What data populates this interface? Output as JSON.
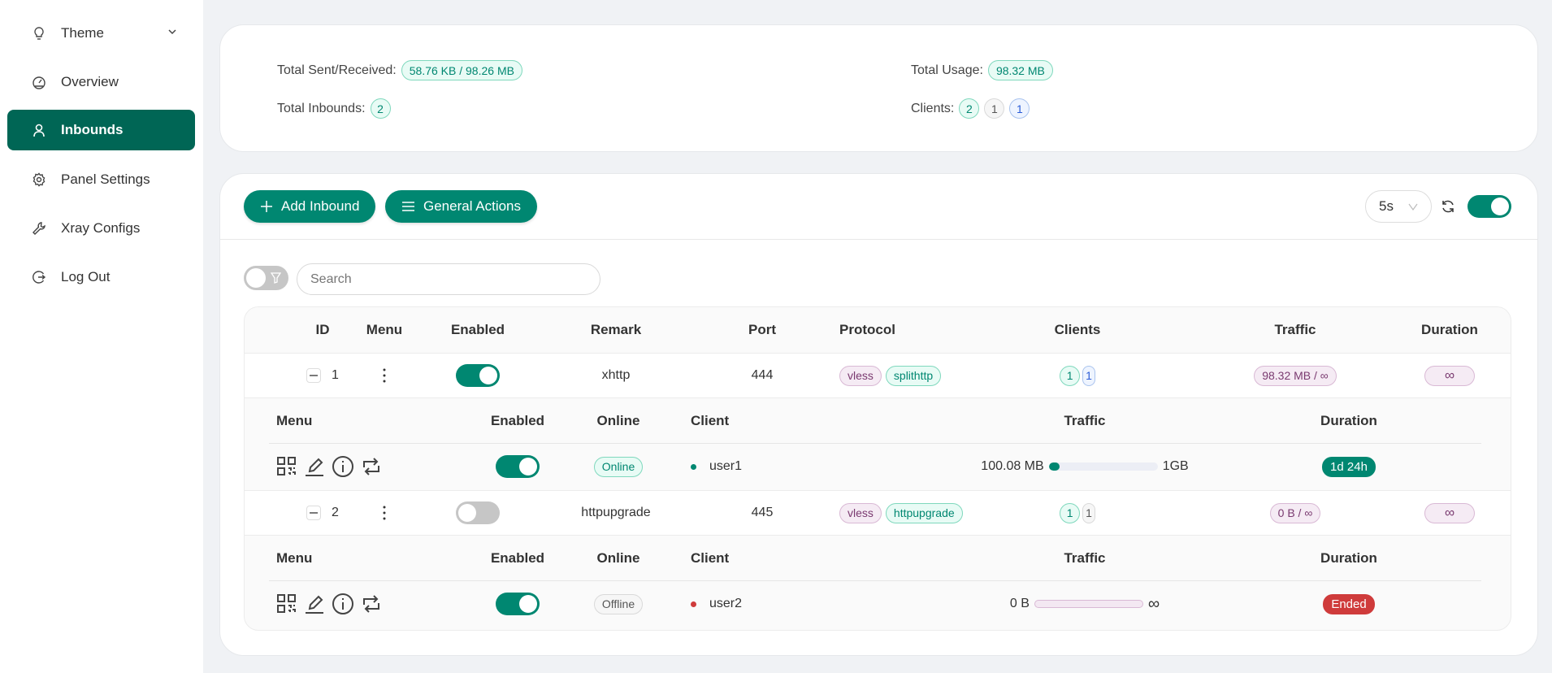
{
  "colors": {
    "primary": "#008771",
    "active": "#006655",
    "danger": "#cf3b3b"
  },
  "sidebar": {
    "items": [
      {
        "label": "Theme",
        "icon": "bulb-icon"
      },
      {
        "label": "Overview",
        "icon": "dashboard-icon"
      },
      {
        "label": "Inbounds",
        "icon": "user-icon",
        "active": true
      },
      {
        "label": "Panel Settings",
        "icon": "gear-icon"
      },
      {
        "label": "Xray Configs",
        "icon": "wrench-icon"
      },
      {
        "label": "Log Out",
        "icon": "logout-icon"
      }
    ]
  },
  "stats": {
    "sent_received_label": "Total Sent/Received:",
    "sent_received": "58.76 KB / 98.26 MB",
    "usage_label": "Total Usage:",
    "usage": "98.32 MB",
    "inbounds_label": "Total Inbounds:",
    "inbounds": "2",
    "clients_label": "Clients:",
    "clients": [
      "2",
      "1",
      "1"
    ]
  },
  "toolbar": {
    "add": "Add Inbound",
    "general": "General Actions",
    "interval": "5s",
    "auto_refresh": true
  },
  "search": {
    "placeholder": "Search",
    "filter_enabled": false
  },
  "table": {
    "headers": [
      "ID",
      "Menu",
      "Enabled",
      "Remark",
      "Port",
      "Protocol",
      "Clients",
      "Traffic",
      "Duration"
    ],
    "sub_headers": [
      "Menu",
      "Enabled",
      "Online",
      "Client",
      "Traffic",
      "Duration"
    ],
    "rows": [
      {
        "id": "1",
        "enabled": true,
        "remark": "xhttp",
        "port": "444",
        "protocol": "vless",
        "transport": "splithttp",
        "clients_total": "1",
        "clients_online": "1",
        "traffic": "98.32 MB / ∞",
        "duration": "∞",
        "client": {
          "enabled": true,
          "status": "Online",
          "name": "user1",
          "used": "100.08 MB",
          "limit": "1GB",
          "progress_percent": 9.8,
          "duration": "1d 24h"
        }
      },
      {
        "id": "2",
        "enabled": false,
        "remark": "httpupgrade",
        "port": "445",
        "protocol": "vless",
        "transport": "httpupgrade",
        "clients_total": "1",
        "clients_online": "1",
        "traffic": "0 B / ∞",
        "duration": "∞",
        "client": {
          "enabled": true,
          "status": "Offline",
          "name": "user2",
          "used": "0 B",
          "limit": "∞",
          "progress_percent": 0,
          "duration": "Ended"
        }
      }
    ]
  }
}
